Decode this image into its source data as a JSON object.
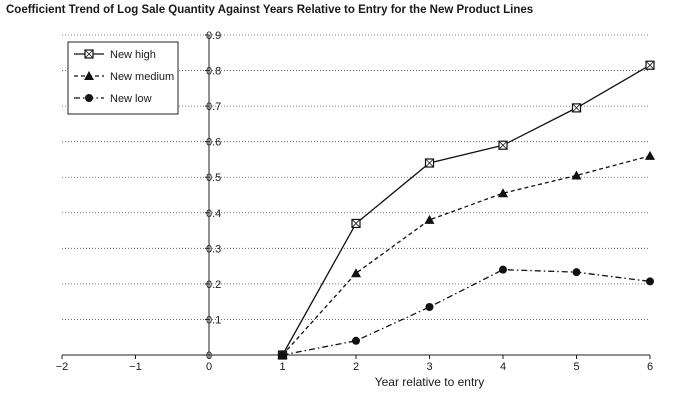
{
  "chart_data": {
    "type": "line",
    "title": "Coefficient Trend of Log Sale Quantity Against Years Relative to Entry for the New Product Lines",
    "xlabel": "Year relative to entry",
    "ylabel": "",
    "xlim": [
      -2,
      6
    ],
    "ylim": [
      0,
      0.9
    ],
    "xticks": [
      -2,
      -1,
      0,
      1,
      2,
      3,
      4,
      5,
      6
    ],
    "yticks": [
      0,
      0.1,
      0.2,
      0.3,
      0.4,
      0.5,
      0.6,
      0.7,
      0.8,
      0.9
    ],
    "grid": "horizontal dotted",
    "legend_position": "top-left",
    "series": [
      {
        "name": "New high",
        "marker": "square",
        "line_style": "solid",
        "x": [
          1,
          2,
          3,
          4,
          5,
          6
        ],
        "values": [
          0.0,
          0.37,
          0.54,
          0.59,
          0.695,
          0.815
        ]
      },
      {
        "name": "New medium",
        "marker": "triangle",
        "line_style": "dashed",
        "x": [
          1,
          2,
          3,
          4,
          5,
          6
        ],
        "values": [
          0.0,
          0.23,
          0.38,
          0.455,
          0.505,
          0.56
        ]
      },
      {
        "name": "New low",
        "marker": "circle",
        "line_style": "dash-dot",
        "x": [
          1,
          2,
          3,
          4,
          5,
          6
        ],
        "values": [
          0.0,
          0.04,
          0.135,
          0.24,
          0.233,
          0.207
        ]
      }
    ]
  }
}
